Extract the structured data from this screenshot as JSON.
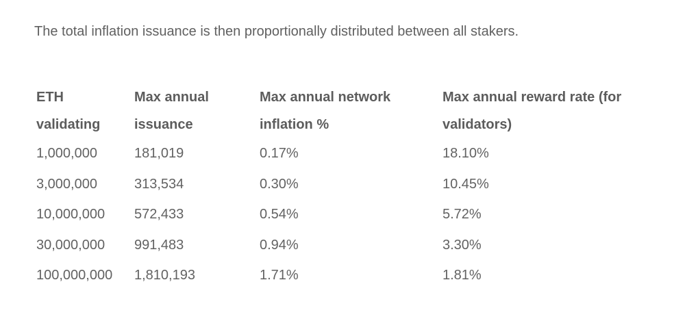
{
  "intro": {
    "text": "The total inflation issuance is then proportionally distributed between all stakers."
  },
  "table": {
    "headers": [
      "ETH validating",
      "Max annual issuance",
      "Max annual network inflation %",
      "Max annual reward rate (for validators)"
    ],
    "rows": [
      [
        "1,000,000",
        "181,019",
        "0.17%",
        "18.10%"
      ],
      [
        "3,000,000",
        "313,534",
        "0.30%",
        "10.45%"
      ],
      [
        "10,000,000",
        "572,433",
        "0.54%",
        "5.72%"
      ],
      [
        "30,000,000",
        "991,483",
        "0.94%",
        "3.30%"
      ],
      [
        "100,000,000",
        "1,810,193",
        "1.71%",
        "1.81%"
      ]
    ]
  }
}
